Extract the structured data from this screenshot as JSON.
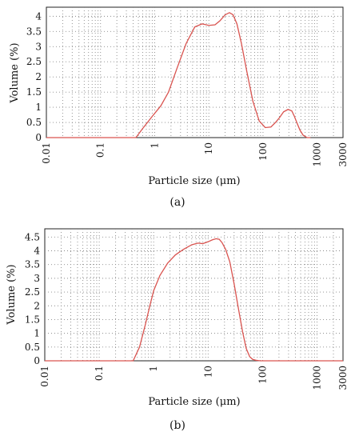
{
  "chart_data": [
    {
      "id": "a",
      "type": "line",
      "caption": "(a)",
      "xlabel": "Particle size (μm)",
      "ylabel": "Volume (%)",
      "xscale": "log",
      "xlim": [
        0.01,
        3000
      ],
      "ylim": [
        0,
        4.3
      ],
      "xticks": [
        0.01,
        0.1,
        1,
        10,
        100,
        1000,
        3000
      ],
      "xtick_labels": [
        "0.01",
        "0.1",
        "1",
        "10",
        "100",
        "1000",
        "3000"
      ],
      "yticks": [
        0,
        0.5,
        1,
        1.5,
        2,
        2.5,
        3,
        3.5,
        4
      ],
      "ytick_labels": [
        "0",
        "0.5",
        "1",
        "1.5",
        "2",
        "2.5",
        "3",
        "3.5",
        "4"
      ],
      "grid": true,
      "color": "#d9534f",
      "series": [
        {
          "x": [
            0.01,
            0.45,
            0.6,
            0.9,
            1.3,
            1.8,
            2.6,
            3.8,
            5.5,
            7.5,
            10,
            13,
            16,
            20,
            24,
            28,
            33,
            40,
            50,
            65,
            85,
            110,
            140,
            170,
            200,
            240,
            290,
            340,
            380,
            420,
            480,
            550,
            650,
            750
          ],
          "y": [
            0,
            0,
            0.3,
            0.7,
            1.05,
            1.5,
            2.3,
            3.1,
            3.65,
            3.75,
            3.7,
            3.72,
            3.85,
            4.05,
            4.12,
            4.05,
            3.75,
            3.1,
            2.2,
            1.2,
            0.55,
            0.33,
            0.35,
            0.5,
            0.65,
            0.85,
            0.93,
            0.88,
            0.7,
            0.5,
            0.25,
            0.08,
            0,
            0
          ]
        }
      ]
    },
    {
      "id": "b",
      "type": "line",
      "caption": "(b)",
      "xlabel": "Particle size (μm)",
      "ylabel": "Volume (%)",
      "xscale": "log",
      "xlim": [
        0.01,
        3000
      ],
      "ylim": [
        0,
        4.8
      ],
      "xticks": [
        0.01,
        0.1,
        1,
        10,
        100,
        1000,
        3000
      ],
      "xtick_labels": [
        "0.01",
        "0.1",
        "1",
        "10",
        "100",
        "1000",
        "3000"
      ],
      "yticks": [
        0,
        0.5,
        1,
        1.5,
        2,
        2.5,
        3,
        3.5,
        4,
        4.5
      ],
      "ytick_labels": [
        "0",
        "0.5",
        "1",
        "1.5",
        "2",
        "2.5",
        "3",
        "3.5",
        "4",
        "4.5"
      ],
      "grid": true,
      "color": "#d9534f",
      "series": [
        {
          "x": [
            0.01,
            0.42,
            0.55,
            0.7,
            0.85,
            1.0,
            1.3,
            1.8,
            2.5,
            3.5,
            5,
            6.5,
            8,
            10,
            12,
            14,
            16,
            18,
            21,
            25,
            30,
            36,
            43,
            50,
            58,
            66,
            75,
            90,
            120,
            3000
          ],
          "y": [
            0,
            0,
            0.5,
            1.3,
            2.0,
            2.55,
            3.1,
            3.55,
            3.85,
            4.05,
            4.22,
            4.28,
            4.26,
            4.33,
            4.4,
            4.44,
            4.42,
            4.3,
            4.05,
            3.6,
            2.8,
            1.9,
            1.05,
            0.45,
            0.15,
            0.05,
            0.02,
            0,
            0,
            0
          ]
        }
      ]
    }
  ]
}
